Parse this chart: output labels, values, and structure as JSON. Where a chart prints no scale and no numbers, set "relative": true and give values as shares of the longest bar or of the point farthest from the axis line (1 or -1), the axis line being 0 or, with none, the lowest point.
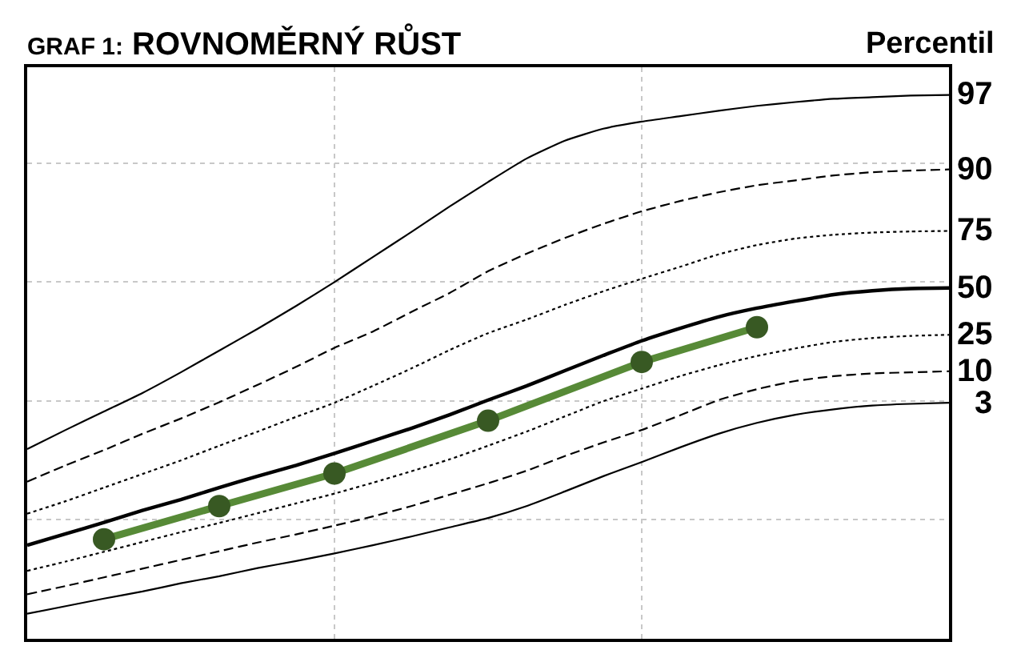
{
  "chart_data": {
    "type": "line",
    "title": "GRAF 1: ROVNOMĚRNÝ RŮST",
    "legend_title": "Percentil",
    "relative": true,
    "grid": true,
    "legend": false,
    "marker": "none",
    "categories": [
      null,
      null,
      null,
      null,
      null,
      null,
      null,
      null,
      null,
      null,
      null,
      null,
      null,
      null,
      null,
      null,
      null,
      null,
      null,
      null,
      null,
      null,
      null,
      null,
      null
    ],
    "series": [
      {
        "name": "97",
        "color": "#000000",
        "line_style": "solid",
        "values": [
          0.349,
          0.384,
          0.418,
          0.452,
          0.49,
          0.53,
          0.57,
          0.612,
          0.656,
          0.702,
          0.748,
          0.795,
          0.84,
          0.883,
          0.916,
          0.938,
          0.951,
          0.961,
          0.971,
          0.98,
          0.987,
          0.993,
          0.996,
          0.999,
          1.0
        ]
      },
      {
        "name": "90",
        "color": "#000000",
        "line_style": "dashed",
        "values": [
          0.289,
          0.319,
          0.347,
          0.377,
          0.405,
          0.435,
          0.467,
          0.5,
          0.535,
          0.565,
          0.601,
          0.636,
          0.676,
          0.708,
          0.737,
          0.763,
          0.786,
          0.805,
          0.821,
          0.834,
          0.843,
          0.852,
          0.858,
          0.861,
          0.863
        ]
      },
      {
        "name": "75",
        "color": "#000000",
        "line_style": "dotted",
        "values": [
          0.23,
          0.253,
          0.278,
          0.303,
          0.328,
          0.355,
          0.381,
          0.408,
          0.434,
          0.465,
          0.497,
          0.531,
          0.562,
          0.587,
          0.614,
          0.639,
          0.662,
          0.684,
          0.707,
          0.724,
          0.736,
          0.743,
          0.747,
          0.749,
          0.75
        ]
      },
      {
        "name": "50",
        "color": "#000000",
        "line_style": "solid",
        "values": [
          0.172,
          0.193,
          0.214,
          0.236,
          0.256,
          0.278,
          0.299,
          0.319,
          0.341,
          0.364,
          0.387,
          0.412,
          0.439,
          0.465,
          0.493,
          0.521,
          0.548,
          0.571,
          0.592,
          0.608,
          0.621,
          0.633,
          0.64,
          0.644,
          0.645
        ]
      },
      {
        "name": "25",
        "color": "#000000",
        "line_style": "dotted",
        "values": [
          0.125,
          0.142,
          0.16,
          0.178,
          0.196,
          0.213,
          0.231,
          0.249,
          0.267,
          0.287,
          0.308,
          0.33,
          0.355,
          0.381,
          0.409,
          0.437,
          0.46,
          0.483,
          0.503,
          0.52,
          0.534,
          0.546,
          0.553,
          0.557,
          0.559
        ]
      },
      {
        "name": "10",
        "color": "#000000",
        "line_style": "dashed",
        "values": [
          0.082,
          0.097,
          0.113,
          0.129,
          0.145,
          0.161,
          0.177,
          0.192,
          0.208,
          0.225,
          0.244,
          0.265,
          0.286,
          0.309,
          0.336,
          0.361,
          0.384,
          0.411,
          0.439,
          0.459,
          0.474,
          0.483,
          0.488,
          0.49,
          0.492
        ]
      },
      {
        "name": "3",
        "color": "#000000",
        "line_style": "solid",
        "values": [
          0.046,
          0.06,
          0.074,
          0.087,
          0.102,
          0.115,
          0.13,
          0.143,
          0.157,
          0.172,
          0.188,
          0.205,
          0.222,
          0.244,
          0.271,
          0.299,
          0.325,
          0.352,
          0.377,
          0.397,
          0.412,
          0.422,
          0.429,
          0.432,
          0.434
        ]
      },
      {
        "color": "#578a37",
        "marker": "circle",
        "line_style": "solid",
        "values": [
          null,
          null,
          0.183,
          null,
          null,
          0.244,
          null,
          null,
          0.304,
          null,
          null,
          null,
          0.401,
          null,
          null,
          null,
          0.509,
          null,
          null,
          0.573,
          null,
          null,
          null,
          null,
          null
        ]
      }
    ]
  }
}
